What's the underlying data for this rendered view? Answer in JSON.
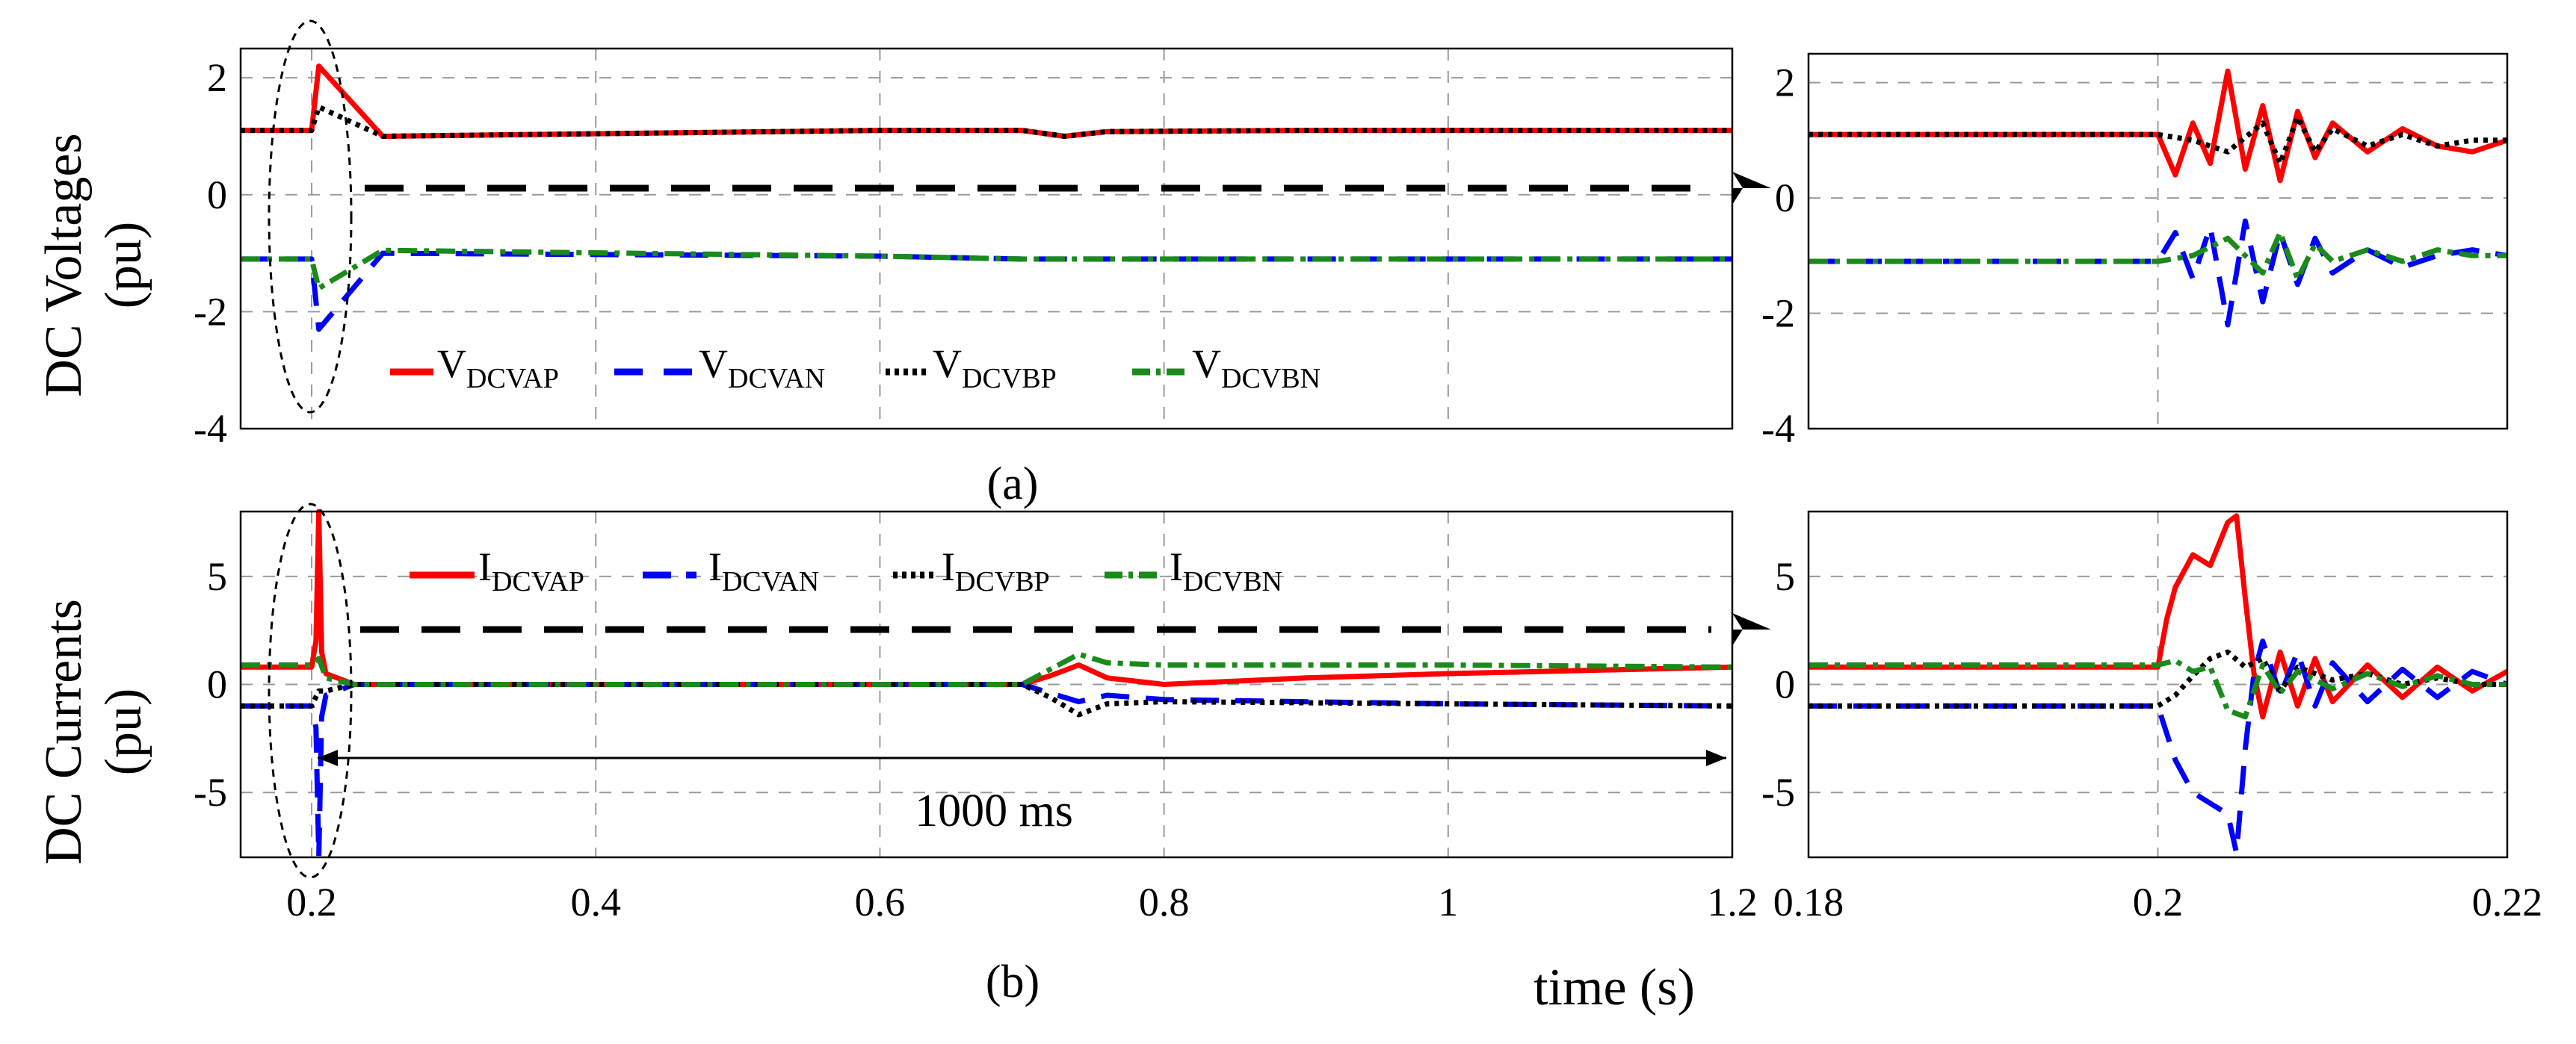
{
  "colors": {
    "VDCVAP": "#ff0000",
    "VDCVAN": "#0000ff",
    "VDCVBP": "#000000",
    "VDCVBN": "#1a8a1a",
    "arrow": "#000000"
  },
  "chart_data": [
    {
      "id": "a_main",
      "type": "line",
      "ylabel_line1": "DC Voltages",
      "ylabel_line2": "(pu)",
      "caption": "(a)",
      "xlim": [
        0.15,
        1.2
      ],
      "ylim": [
        -4,
        2.5
      ],
      "xticks": [
        0.2,
        0.4,
        0.6,
        0.8,
        1.0,
        1.2
      ],
      "yticks": [
        2,
        0,
        -2,
        -4
      ],
      "ytick_labels": [
        "2",
        "0",
        "-2",
        "-4"
      ],
      "grid": true,
      "legend_position": "bottom-center",
      "series": [
        {
          "key": "VDCVAP",
          "name": "V",
          "sub": "DCVAP",
          "style": "solid",
          "x": [
            0.15,
            0.2,
            0.205,
            0.25,
            0.6,
            0.7,
            0.73,
            0.76,
            0.9,
            1.2
          ],
          "y": [
            1.1,
            1.1,
            2.2,
            1.0,
            1.1,
            1.1,
            1.0,
            1.08,
            1.1,
            1.1
          ]
        },
        {
          "key": "VDCVAN",
          "name": "V",
          "sub": "DCVAN",
          "style": "dash",
          "x": [
            0.15,
            0.2,
            0.205,
            0.25,
            0.6,
            0.7,
            1.2
          ],
          "y": [
            -1.1,
            -1.1,
            -2.3,
            -1.0,
            -1.05,
            -1.1,
            -1.1
          ]
        },
        {
          "key": "VDCVBP",
          "name": "V",
          "sub": "DCVBP",
          "style": "dot",
          "x": [
            0.15,
            0.2,
            0.205,
            0.25,
            0.6,
            0.7,
            0.73,
            0.76,
            0.9,
            1.2
          ],
          "y": [
            1.1,
            1.1,
            1.5,
            1.0,
            1.1,
            1.1,
            1.0,
            1.08,
            1.1,
            1.1
          ]
        },
        {
          "key": "VDCVBN",
          "name": "V",
          "sub": "DCVBN",
          "style": "dashdot",
          "x": [
            0.15,
            0.2,
            0.205,
            0.25,
            0.6,
            0.7,
            1.2
          ],
          "y": [
            -1.1,
            -1.1,
            -1.6,
            -0.95,
            -1.05,
            -1.1,
            -1.1
          ]
        }
      ]
    },
    {
      "id": "a_zoom",
      "type": "line",
      "xlim": [
        0.18,
        0.22
      ],
      "ylim": [
        -4,
        2.5
      ],
      "xticks": [
        0.2
      ],
      "yticks": [
        2,
        0,
        -2,
        -4
      ],
      "ytick_labels": [
        "2",
        "0",
        "-2",
        "-4"
      ],
      "grid": true,
      "series": [
        {
          "key": "VDCVAP",
          "style": "solid",
          "x": [
            0.18,
            0.2,
            0.201,
            0.202,
            0.203,
            0.204,
            0.205,
            0.206,
            0.207,
            0.208,
            0.209,
            0.21,
            0.212,
            0.214,
            0.216,
            0.218,
            0.22
          ],
          "y": [
            1.1,
            1.1,
            0.4,
            1.3,
            0.6,
            2.2,
            0.5,
            1.6,
            0.3,
            1.5,
            0.7,
            1.3,
            0.8,
            1.2,
            0.9,
            0.8,
            1.0
          ]
        },
        {
          "key": "VDCVAN",
          "style": "dash",
          "x": [
            0.18,
            0.2,
            0.201,
            0.202,
            0.203,
            0.204,
            0.205,
            0.206,
            0.207,
            0.208,
            0.209,
            0.21,
            0.212,
            0.214,
            0.216,
            0.218,
            0.22
          ],
          "y": [
            -1.1,
            -1.1,
            -0.6,
            -1.4,
            -0.5,
            -2.2,
            -0.4,
            -1.8,
            -0.6,
            -1.5,
            -0.7,
            -1.3,
            -0.9,
            -1.2,
            -1.0,
            -0.9,
            -1.0
          ]
        },
        {
          "key": "VDCVBP",
          "style": "dot",
          "x": [
            0.18,
            0.2,
            0.202,
            0.204,
            0.206,
            0.207,
            0.208,
            0.209,
            0.21,
            0.212,
            0.214,
            0.216,
            0.218,
            0.22
          ],
          "y": [
            1.1,
            1.1,
            1.0,
            0.8,
            1.3,
            0.6,
            1.4,
            0.8,
            1.2,
            0.9,
            1.1,
            0.9,
            1.0,
            1.0
          ]
        },
        {
          "key": "VDCVBN",
          "style": "dashdot",
          "x": [
            0.18,
            0.2,
            0.202,
            0.204,
            0.206,
            0.207,
            0.208,
            0.209,
            0.21,
            0.212,
            0.214,
            0.216,
            0.218,
            0.22
          ],
          "y": [
            -1.1,
            -1.1,
            -1.0,
            -0.7,
            -1.3,
            -0.6,
            -1.4,
            -0.8,
            -1.1,
            -0.9,
            -1.1,
            -0.9,
            -1.0,
            -1.0
          ]
        }
      ]
    },
    {
      "id": "b_main",
      "type": "line",
      "ylabel_line1": "DC Currents",
      "ylabel_line2": "(pu)",
      "caption": "(b)",
      "xlabel": "time (s)",
      "xlim": [
        0.15,
        1.2
      ],
      "ylim": [
        -8,
        8
      ],
      "xticks": [
        0.2,
        0.4,
        0.6,
        0.8,
        1.0,
        1.2
      ],
      "xtick_labels": [
        "0.2",
        "0.4",
        "0.6",
        "0.8",
        "1",
        "1.2"
      ],
      "yticks": [
        5,
        0,
        -5
      ],
      "ytick_labels": [
        "5",
        "0",
        "-5"
      ],
      "grid": true,
      "legend_position": "top-left",
      "annotation": "1000 ms",
      "series": [
        {
          "key": "VDCVAP",
          "name": "I",
          "sub": "DCVAP",
          "style": "solid",
          "x": [
            0.15,
            0.2,
            0.203,
            0.205,
            0.207,
            0.21,
            0.23,
            0.6,
            0.7,
            0.72,
            0.74,
            0.76,
            0.8,
            0.9,
            1.0,
            1.2
          ],
          "y": [
            0.8,
            0.8,
            2.0,
            8.0,
            1.5,
            0.5,
            0.0,
            0.0,
            0.0,
            0.4,
            0.9,
            0.3,
            0.0,
            0.3,
            0.5,
            0.8
          ]
        },
        {
          "key": "VDCVAN",
          "name": "I",
          "sub": "DCVAN",
          "style": "dash",
          "x": [
            0.15,
            0.2,
            0.203,
            0.205,
            0.207,
            0.21,
            0.23,
            0.6,
            0.7,
            0.72,
            0.74,
            0.76,
            0.8,
            1.0,
            1.2
          ],
          "y": [
            -1.0,
            -1.0,
            -2.0,
            -8.0,
            -1.5,
            -0.5,
            0.0,
            0.0,
            0.0,
            -0.4,
            -0.8,
            -0.5,
            -0.7,
            -0.9,
            -1.0
          ]
        },
        {
          "key": "VDCVBP",
          "name": "I",
          "sub": "DCVBP",
          "style": "dot",
          "x": [
            0.15,
            0.2,
            0.205,
            0.21,
            0.23,
            0.6,
            0.7,
            0.72,
            0.74,
            0.76,
            0.8,
            1.0,
            1.2
          ],
          "y": [
            -1.0,
            -1.0,
            -0.3,
            -0.3,
            0.0,
            0.0,
            0.0,
            -0.6,
            -1.4,
            -0.9,
            -0.8,
            -0.9,
            -1.0
          ]
        },
        {
          "key": "VDCVBN",
          "name": "I",
          "sub": "DCVBN",
          "style": "dashdot",
          "x": [
            0.15,
            0.2,
            0.205,
            0.21,
            0.23,
            0.6,
            0.7,
            0.72,
            0.74,
            0.76,
            0.8,
            1.0,
            1.2
          ],
          "y": [
            0.9,
            0.9,
            1.2,
            0.3,
            0.0,
            0.0,
            0.0,
            0.7,
            1.4,
            1.0,
            0.9,
            0.9,
            0.8
          ]
        }
      ]
    },
    {
      "id": "b_zoom",
      "type": "line",
      "xlim": [
        0.18,
        0.22
      ],
      "ylim": [
        -8,
        8
      ],
      "xticks": [
        0.18,
        0.2,
        0.22
      ],
      "xtick_labels": [
        "0.18",
        "0.2",
        "0.22"
      ],
      "yticks": [
        5,
        0,
        -5
      ],
      "ytick_labels": [
        "5",
        "0",
        "-5"
      ],
      "grid": true,
      "series": [
        {
          "key": "VDCVAP",
          "style": "solid",
          "x": [
            0.18,
            0.2,
            0.2005,
            0.201,
            0.202,
            0.203,
            0.204,
            0.2045,
            0.205,
            0.2055,
            0.206,
            0.207,
            0.208,
            0.209,
            0.21,
            0.212,
            0.214,
            0.216,
            0.218,
            0.22
          ],
          "y": [
            0.8,
            0.8,
            3.0,
            4.5,
            6.0,
            5.5,
            7.5,
            7.8,
            4.0,
            0.5,
            -1.5,
            1.5,
            -1.0,
            1.2,
            -0.8,
            0.9,
            -0.6,
            0.8,
            -0.3,
            0.6
          ]
        },
        {
          "key": "VDCVAN",
          "style": "dash",
          "x": [
            0.18,
            0.2,
            0.201,
            0.202,
            0.203,
            0.204,
            0.2045,
            0.205,
            0.2055,
            0.206,
            0.207,
            0.208,
            0.209,
            0.21,
            0.212,
            0.214,
            0.216,
            0.218,
            0.22
          ],
          "y": [
            -1.0,
            -1.0,
            -3.5,
            -5.0,
            -5.5,
            -6.0,
            -7.8,
            -3.0,
            0.5,
            2.0,
            -0.5,
            1.5,
            -1.0,
            1.0,
            -0.8,
            0.7,
            -0.6,
            0.6,
            0.0
          ]
        },
        {
          "key": "VDCVBP",
          "style": "dot",
          "x": [
            0.18,
            0.2,
            0.201,
            0.202,
            0.203,
            0.204,
            0.205,
            0.206,
            0.207,
            0.208,
            0.21,
            0.212,
            0.214,
            0.216,
            0.218,
            0.22
          ],
          "y": [
            -1.0,
            -1.0,
            -0.5,
            0.4,
            1.2,
            1.5,
            0.8,
            1.2,
            -0.3,
            0.8,
            0.2,
            0.5,
            0.0,
            0.3,
            0.0,
            0.0
          ]
        },
        {
          "key": "VDCVBN",
          "style": "dashdot",
          "x": [
            0.18,
            0.2,
            0.201,
            0.202,
            0.203,
            0.204,
            0.205,
            0.206,
            0.207,
            0.208,
            0.21,
            0.212,
            0.214,
            0.216,
            0.218,
            0.22
          ],
          "y": [
            0.9,
            0.9,
            1.1,
            0.6,
            0.8,
            -1.2,
            -1.5,
            0.9,
            -0.4,
            0.6,
            -0.2,
            0.5,
            -0.1,
            0.4,
            0.0,
            0.0
          ]
        }
      ]
    }
  ]
}
